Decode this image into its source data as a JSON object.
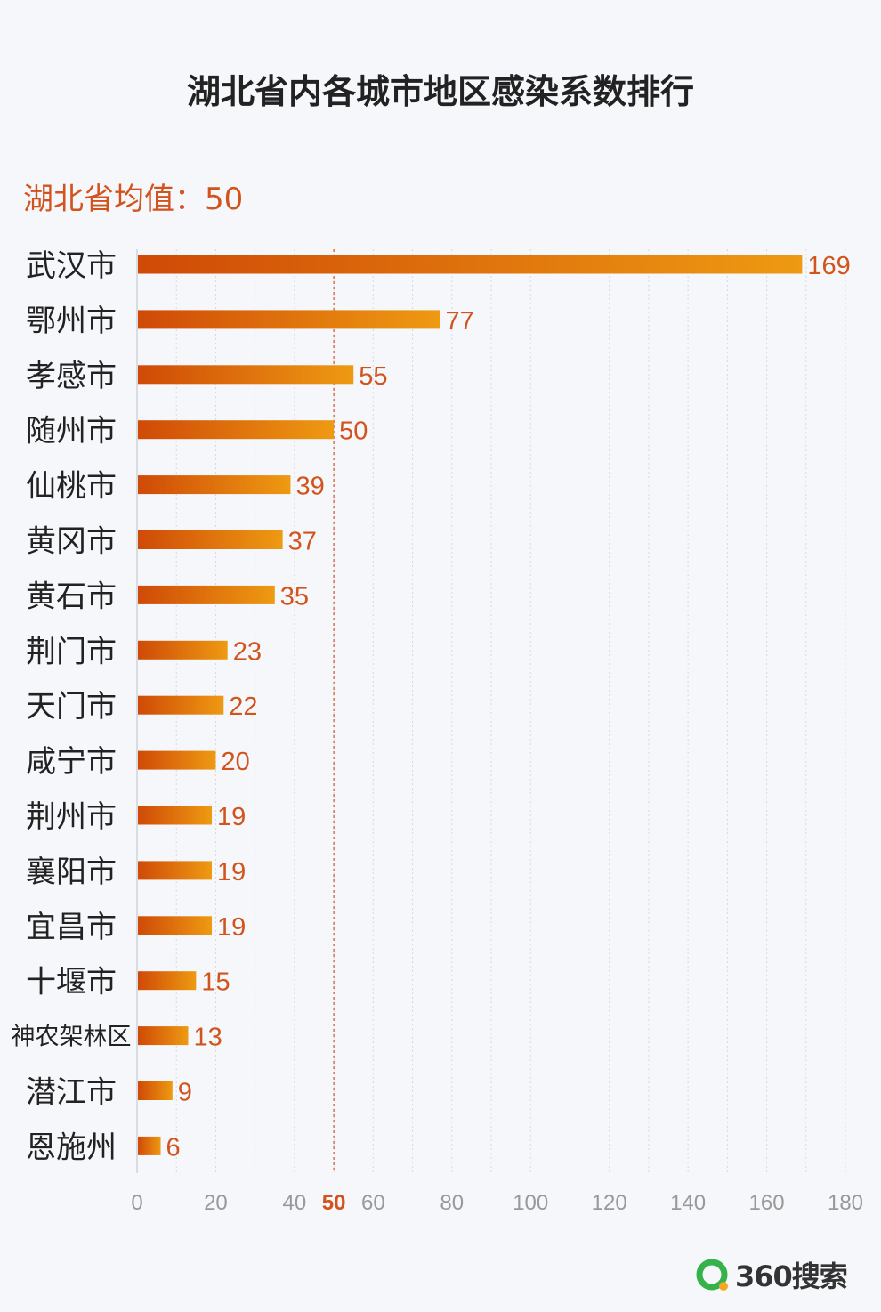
{
  "title": "湖北省内各城市地区感染系数排行",
  "average": {
    "label": "湖北省均值：50",
    "value": 50,
    "tick_label": "50"
  },
  "logo": {
    "text": "360搜索",
    "icon": "360-search-logo-icon"
  },
  "colors": {
    "bar_start": "#cf4a07",
    "bar_end": "#ee9a12",
    "accent": "#d2541c",
    "tick": "#999999",
    "label": "#222222"
  },
  "chart_data": {
    "type": "bar",
    "orientation": "horizontal",
    "title": "湖北省内各城市地区感染系数排行",
    "categories": [
      "武汉市",
      "鄂州市",
      "孝感市",
      "随州市",
      "仙桃市",
      "黄冈市",
      "黄石市",
      "荆门市",
      "天门市",
      "咸宁市",
      "荆州市",
      "襄阳市",
      "宜昌市",
      "十堰市",
      "神农架林区",
      "潜江市",
      "恩施州"
    ],
    "values": [
      169,
      77,
      55,
      50,
      39,
      37,
      35,
      23,
      22,
      20,
      19,
      19,
      19,
      15,
      13,
      9,
      6
    ],
    "xlim": [
      0,
      180
    ],
    "xticks": [
      0,
      20,
      40,
      60,
      80,
      100,
      120,
      140,
      160,
      180
    ],
    "reference_line": {
      "value": 50,
      "label": "50"
    },
    "grid": true
  }
}
